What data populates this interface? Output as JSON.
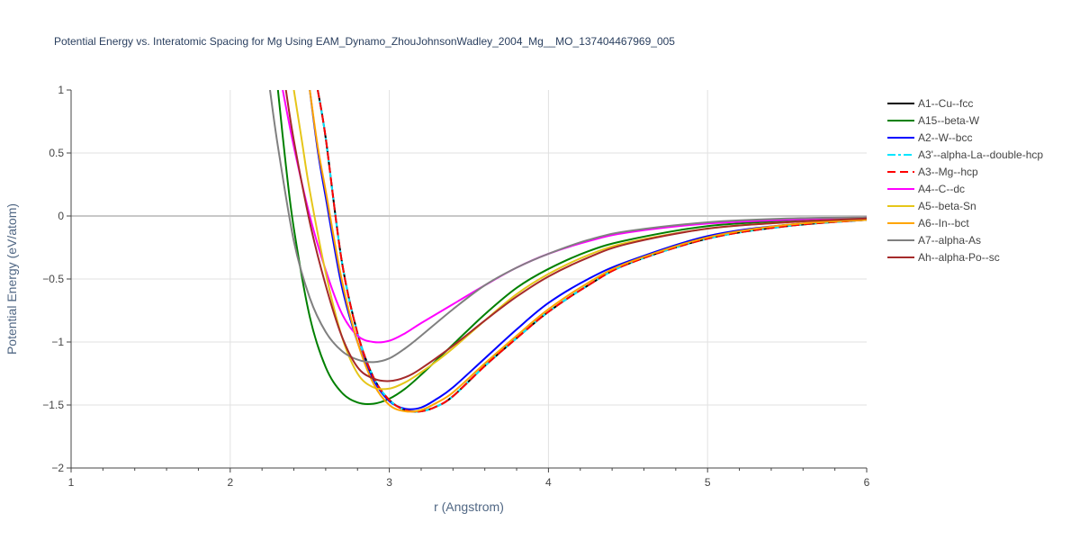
{
  "chart_data": {
    "type": "line",
    "title": "Potential Energy vs. Interatomic Spacing for Mg Using EAM_Dynamo_ZhouJohnsonWadley_2004_Mg__MO_137404467969_005",
    "xlabel": "r (Angstrom)",
    "ylabel": "Potential Energy (eV/atom)",
    "xlim": [
      1,
      6
    ],
    "ylim": [
      -2,
      1
    ],
    "x_ticks": [
      1,
      2,
      3,
      4,
      5,
      6
    ],
    "x_tick_labels": [
      "1",
      "2",
      "3",
      "4",
      "5",
      "6"
    ],
    "y_ticks": [
      -2,
      -1.5,
      -1,
      -0.5,
      0,
      0.5,
      1
    ],
    "y_tick_labels": [
      "−2",
      "−1.5",
      "−1",
      "−0.5",
      "0",
      "0.5",
      "1"
    ],
    "grid": true,
    "legend_position": "right",
    "series": [
      {
        "name": "A1--Cu--fcc",
        "color": "#000000",
        "dash": "solid",
        "x": [
          2.55,
          2.6,
          2.7,
          2.8,
          2.9,
          3.0,
          3.1,
          3.2,
          3.3,
          3.4,
          3.6,
          3.8,
          4.0,
          4.25,
          4.5,
          5.0,
          5.5,
          6.0
        ],
        "y": [
          1.0,
          0.62,
          -0.35,
          -0.93,
          -1.28,
          -1.46,
          -1.54,
          -1.55,
          -1.51,
          -1.43,
          -1.19,
          -0.97,
          -0.76,
          -0.55,
          -0.38,
          -0.18,
          -0.08,
          -0.03
        ]
      },
      {
        "name": "A15--beta-W",
        "color": "#008000",
        "dash": "solid",
        "x": [
          2.3,
          2.35,
          2.4,
          2.5,
          2.6,
          2.7,
          2.8,
          2.9,
          3.0,
          3.1,
          3.2,
          3.4,
          3.6,
          3.8,
          4.0,
          4.25,
          4.5,
          5.0,
          5.5,
          6.0
        ],
        "y": [
          1.0,
          0.4,
          -0.1,
          -0.8,
          -1.2,
          -1.4,
          -1.48,
          -1.49,
          -1.45,
          -1.37,
          -1.26,
          -1.02,
          -0.78,
          -0.57,
          -0.42,
          -0.28,
          -0.19,
          -0.08,
          -0.04,
          -0.02
        ]
      },
      {
        "name": "A2--W--bcc",
        "color": "#0000ff",
        "dash": "solid",
        "x": [
          2.5,
          2.55,
          2.6,
          2.7,
          2.8,
          2.9,
          3.0,
          3.1,
          3.2,
          3.3,
          3.4,
          3.6,
          3.8,
          4.0,
          4.25,
          4.5,
          5.0,
          5.5,
          6.0
        ],
        "y": [
          1.0,
          0.52,
          0.15,
          -0.55,
          -1.0,
          -1.3,
          -1.47,
          -1.53,
          -1.52,
          -1.45,
          -1.36,
          -1.13,
          -0.9,
          -0.69,
          -0.5,
          -0.36,
          -0.16,
          -0.07,
          -0.03
        ]
      },
      {
        "name": "A3'--alpha-La--double-hcp",
        "color": "#00e5ff",
        "dash": "dashdot",
        "x": [
          2.55,
          2.6,
          2.7,
          2.8,
          2.9,
          3.0,
          3.1,
          3.2,
          3.3,
          3.4,
          3.6,
          3.8,
          4.0,
          4.25,
          4.5,
          5.0,
          5.5,
          6.0
        ],
        "y": [
          1.0,
          0.62,
          -0.35,
          -0.93,
          -1.28,
          -1.46,
          -1.54,
          -1.55,
          -1.51,
          -1.43,
          -1.19,
          -0.97,
          -0.76,
          -0.55,
          -0.38,
          -0.18,
          -0.08,
          -0.03
        ]
      },
      {
        "name": "A3--Mg--hcp",
        "color": "#ff0000",
        "dash": "dash",
        "x": [
          2.55,
          2.6,
          2.7,
          2.8,
          2.9,
          3.0,
          3.1,
          3.2,
          3.3,
          3.4,
          3.6,
          3.8,
          4.0,
          4.25,
          4.5,
          5.0,
          5.5,
          6.0
        ],
        "y": [
          1.0,
          0.62,
          -0.35,
          -0.93,
          -1.28,
          -1.46,
          -1.54,
          -1.55,
          -1.51,
          -1.43,
          -1.19,
          -0.97,
          -0.76,
          -0.55,
          -0.38,
          -0.18,
          -0.08,
          -0.03
        ]
      },
      {
        "name": "A4--C--dc",
        "color": "#ff00ff",
        "dash": "solid",
        "x": [
          2.33,
          2.4,
          2.5,
          2.6,
          2.7,
          2.8,
          2.9,
          3.0,
          3.1,
          3.2,
          3.4,
          3.6,
          3.8,
          4.0,
          4.25,
          4.5,
          5.0,
          5.5,
          6.0
        ],
        "y": [
          1.0,
          0.55,
          0.0,
          -0.43,
          -0.77,
          -0.95,
          -1.0,
          -0.99,
          -0.93,
          -0.85,
          -0.7,
          -0.55,
          -0.41,
          -0.3,
          -0.2,
          -0.13,
          -0.06,
          -0.03,
          -0.01
        ]
      },
      {
        "name": "A5--beta-Sn",
        "color": "#e6c619",
        "dash": "solid",
        "x": [
          2.4,
          2.45,
          2.5,
          2.6,
          2.7,
          2.8,
          2.9,
          3.0,
          3.1,
          3.2,
          3.3,
          3.4,
          3.6,
          3.8,
          4.0,
          4.25,
          4.5,
          5.0,
          5.5,
          6.0
        ],
        "y": [
          1.0,
          0.6,
          0.2,
          -0.45,
          -0.95,
          -1.25,
          -1.36,
          -1.37,
          -1.32,
          -1.24,
          -1.15,
          -1.05,
          -0.83,
          -0.62,
          -0.46,
          -0.31,
          -0.21,
          -0.1,
          -0.05,
          -0.02
        ]
      },
      {
        "name": "A6--In--bct",
        "color": "#ffa500",
        "dash": "solid",
        "x": [
          2.5,
          2.55,
          2.6,
          2.7,
          2.8,
          2.9,
          3.0,
          3.1,
          3.2,
          3.3,
          3.4,
          3.6,
          3.8,
          4.0,
          4.25,
          4.5,
          5.0,
          5.5,
          6.0
        ],
        "y": [
          1.0,
          0.55,
          0.2,
          -0.5,
          -1.0,
          -1.33,
          -1.5,
          -1.55,
          -1.54,
          -1.48,
          -1.4,
          -1.17,
          -0.95,
          -0.74,
          -0.53,
          -0.37,
          -0.17,
          -0.07,
          -0.03
        ]
      },
      {
        "name": "A7--alpha-As",
        "color": "#808080",
        "dash": "solid",
        "x": [
          2.25,
          2.3,
          2.4,
          2.5,
          2.6,
          2.7,
          2.8,
          2.9,
          3.0,
          3.1,
          3.2,
          3.4,
          3.6,
          3.8,
          4.0,
          4.25,
          4.5,
          5.0,
          5.5,
          6.0
        ],
        "y": [
          1.0,
          0.55,
          -0.2,
          -0.65,
          -0.92,
          -1.07,
          -1.14,
          -1.16,
          -1.13,
          -1.05,
          -0.95,
          -0.74,
          -0.55,
          -0.41,
          -0.3,
          -0.19,
          -0.12,
          -0.05,
          -0.02,
          -0.01
        ]
      },
      {
        "name": "Ah--alpha-Po--sc",
        "color": "#a52a2a",
        "dash": "solid",
        "x": [
          2.35,
          2.4,
          2.5,
          2.6,
          2.7,
          2.8,
          2.9,
          3.0,
          3.1,
          3.2,
          3.4,
          3.6,
          3.8,
          4.0,
          4.25,
          4.5,
          5.0,
          5.5,
          6.0
        ],
        "y": [
          1.0,
          0.6,
          -0.05,
          -0.55,
          -0.95,
          -1.2,
          -1.29,
          -1.31,
          -1.28,
          -1.21,
          -1.03,
          -0.83,
          -0.64,
          -0.48,
          -0.33,
          -0.22,
          -0.1,
          -0.05,
          -0.02
        ]
      }
    ]
  }
}
